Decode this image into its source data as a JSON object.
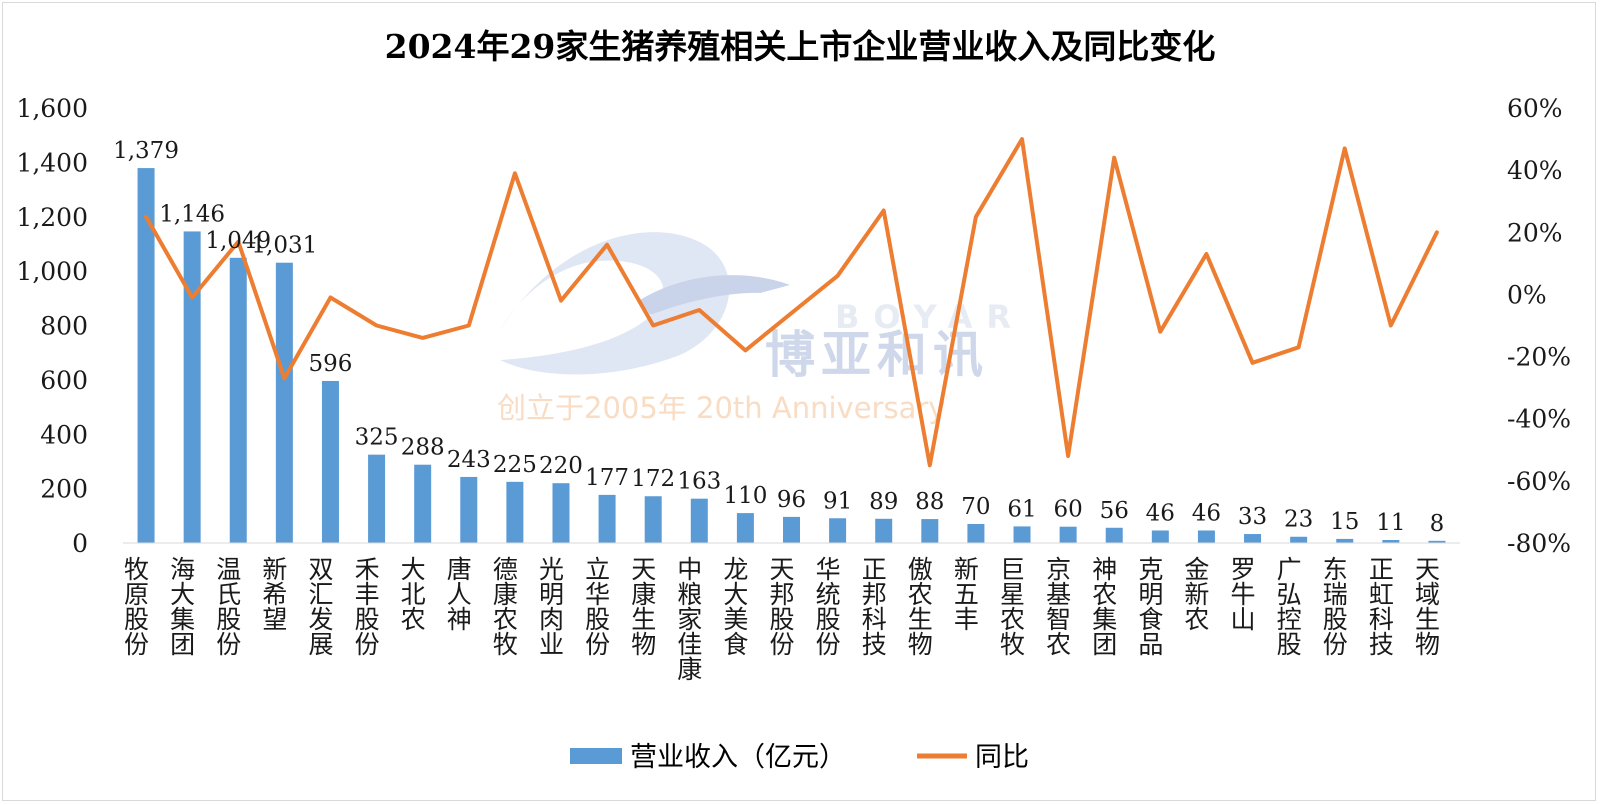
{
  "chart_data": {
    "type": "bar",
    "title": "2024年29家生猪养殖相关上市企业营业收入及同比变化",
    "categories": [
      "牧原股份",
      "海大集团",
      "温氏股份",
      "新希望",
      "双汇发展",
      "禾丰股份",
      "大北农",
      "唐人神",
      "德康农牧",
      "光明肉业",
      "立华股份",
      "天康生物",
      "中粮家佳康",
      "龙大美食",
      "天邦股份",
      "华统股份",
      "正邦科技",
      "傲农生物",
      "新五丰",
      "巨星农牧",
      "京基智农",
      "神农集团",
      "克明食品",
      "金新农",
      "罗牛山",
      "广弘控股",
      "东瑞股份",
      "正虹科技",
      "天域生物"
    ],
    "series": [
      {
        "name": "营业收入（亿元）",
        "type": "bar",
        "axis": "left",
        "color": "#5b9bd5",
        "values": [
          1379,
          1146,
          1049,
          1031,
          596,
          325,
          288,
          243,
          225,
          220,
          177,
          172,
          163,
          110,
          96,
          91,
          89,
          88,
          70,
          61,
          60,
          56,
          46,
          46,
          33,
          23,
          15,
          11,
          8
        ],
        "labels": [
          "1,379",
          "1,146",
          "1,049",
          "1,031",
          "596",
          "325",
          "288",
          "243",
          "225",
          "220",
          "177",
          "172",
          "163",
          "110",
          "96",
          "91",
          "89",
          "88",
          "70",
          "61",
          "60",
          "56",
          "46",
          "46",
          "33",
          "23",
          "15",
          "11",
          "8"
        ]
      },
      {
        "name": "同比",
        "type": "line",
        "axis": "right",
        "color": "#ed7d31",
        "values": [
          25,
          -1,
          17,
          -27,
          -1,
          -10,
          -14,
          -10,
          39,
          -2,
          16,
          -10,
          -5,
          -18,
          -6,
          6,
          27,
          -55,
          25,
          50,
          -52,
          44,
          -12,
          13,
          -22,
          -17,
          47,
          -10,
          20
        ]
      }
    ],
    "y_left": {
      "min": 0,
      "max": 1600,
      "ticks": [
        "0",
        "200",
        "400",
        "600",
        "800",
        "1,000",
        "1,200",
        "1,400",
        "1,600"
      ]
    },
    "y_right": {
      "min": -80,
      "max": 60,
      "ticks": [
        "-80%",
        "-60%",
        "-40%",
        "-20%",
        "0%",
        "20%",
        "40%",
        "60%"
      ]
    },
    "legend_position": "bottom",
    "grid": false
  },
  "watermark": {
    "brand_latin": "BOYAR",
    "brand_cn": "博亚和讯",
    "tagline": "创立于2005年 20th Anniversary"
  }
}
